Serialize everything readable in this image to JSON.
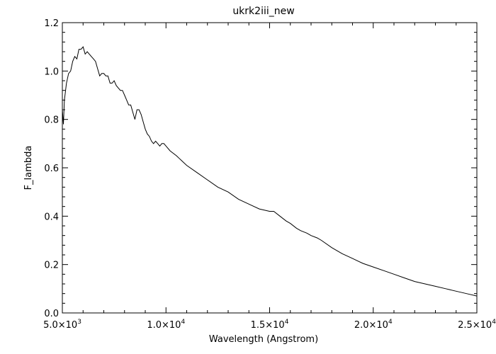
{
  "chart_data": {
    "type": "line",
    "title": "ukrk2iii_new",
    "xlabel": "Wavelength (Angstrom)",
    "ylabel": "F_lambda",
    "xlim": [
      5000,
      25000
    ],
    "ylim": [
      0.0,
      1.2
    ],
    "grid": false,
    "legend": "none",
    "x_ticks": [
      {
        "value": 5000,
        "label": "5.0×10³",
        "mantissa": "5.0×10",
        "exponent": "3"
      },
      {
        "value": 10000,
        "label": "1.0×10⁴",
        "mantissa": "1.0×10",
        "exponent": "4"
      },
      {
        "value": 15000,
        "label": "1.5×10⁴",
        "mantissa": "1.5×10",
        "exponent": "4"
      },
      {
        "value": 20000,
        "label": "2.0×10⁴",
        "mantissa": "2.0×10",
        "exponent": "4"
      },
      {
        "value": 25000,
        "label": "2.5×10⁴",
        "mantissa": "2.5×10",
        "exponent": "4"
      }
    ],
    "y_ticks": [
      {
        "value": 0.0,
        "label": "0.0"
      },
      {
        "value": 0.2,
        "label": "0.2"
      },
      {
        "value": 0.4,
        "label": "0.4"
      },
      {
        "value": 0.6,
        "label": "0.6"
      },
      {
        "value": 0.8,
        "label": "0.8"
      },
      {
        "value": 1.0,
        "label": "1.0"
      },
      {
        "value": 1.2,
        "label": "1.2"
      }
    ],
    "series": [
      {
        "color": "#000000",
        "x": [
          5000,
          5050,
          5100,
          5200,
          5300,
          5400,
          5500,
          5600,
          5700,
          5800,
          5900,
          6000,
          6100,
          6200,
          6300,
          6400,
          6500,
          6600,
          6700,
          6800,
          6900,
          7000,
          7100,
          7200,
          7300,
          7400,
          7500,
          7600,
          7700,
          7800,
          7900,
          8000,
          8100,
          8200,
          8300,
          8400,
          8500,
          8600,
          8700,
          8800,
          8900,
          9000,
          9100,
          9200,
          9300,
          9400,
          9500,
          9600,
          9700,
          9800,
          9900,
          10000,
          10200,
          10500,
          11000,
          11500,
          12000,
          12500,
          13000,
          13500,
          14000,
          14500,
          15000,
          15200,
          15500,
          15800,
          16000,
          16300,
          16500,
          16800,
          17000,
          17300,
          17500,
          18000,
          18500,
          19000,
          19500,
          20000,
          20500,
          21000,
          21500,
          22000,
          22500,
          23000,
          23500,
          24000,
          24500,
          25000
        ],
        "y": [
          0.84,
          0.78,
          0.88,
          0.95,
          0.99,
          1.0,
          1.04,
          1.06,
          1.05,
          1.09,
          1.09,
          1.1,
          1.07,
          1.08,
          1.07,
          1.06,
          1.05,
          1.04,
          1.01,
          0.98,
          0.99,
          0.99,
          0.98,
          0.98,
          0.95,
          0.95,
          0.96,
          0.94,
          0.93,
          0.92,
          0.92,
          0.9,
          0.88,
          0.86,
          0.86,
          0.83,
          0.8,
          0.84,
          0.84,
          0.82,
          0.79,
          0.76,
          0.74,
          0.73,
          0.71,
          0.7,
          0.71,
          0.7,
          0.69,
          0.7,
          0.7,
          0.69,
          0.67,
          0.65,
          0.61,
          0.58,
          0.55,
          0.52,
          0.5,
          0.47,
          0.45,
          0.43,
          0.42,
          0.42,
          0.4,
          0.38,
          0.37,
          0.35,
          0.34,
          0.33,
          0.32,
          0.31,
          0.3,
          0.27,
          0.245,
          0.225,
          0.205,
          0.19,
          0.175,
          0.16,
          0.145,
          0.13,
          0.12,
          0.11,
          0.1,
          0.09,
          0.08,
          0.07
        ]
      }
    ]
  }
}
